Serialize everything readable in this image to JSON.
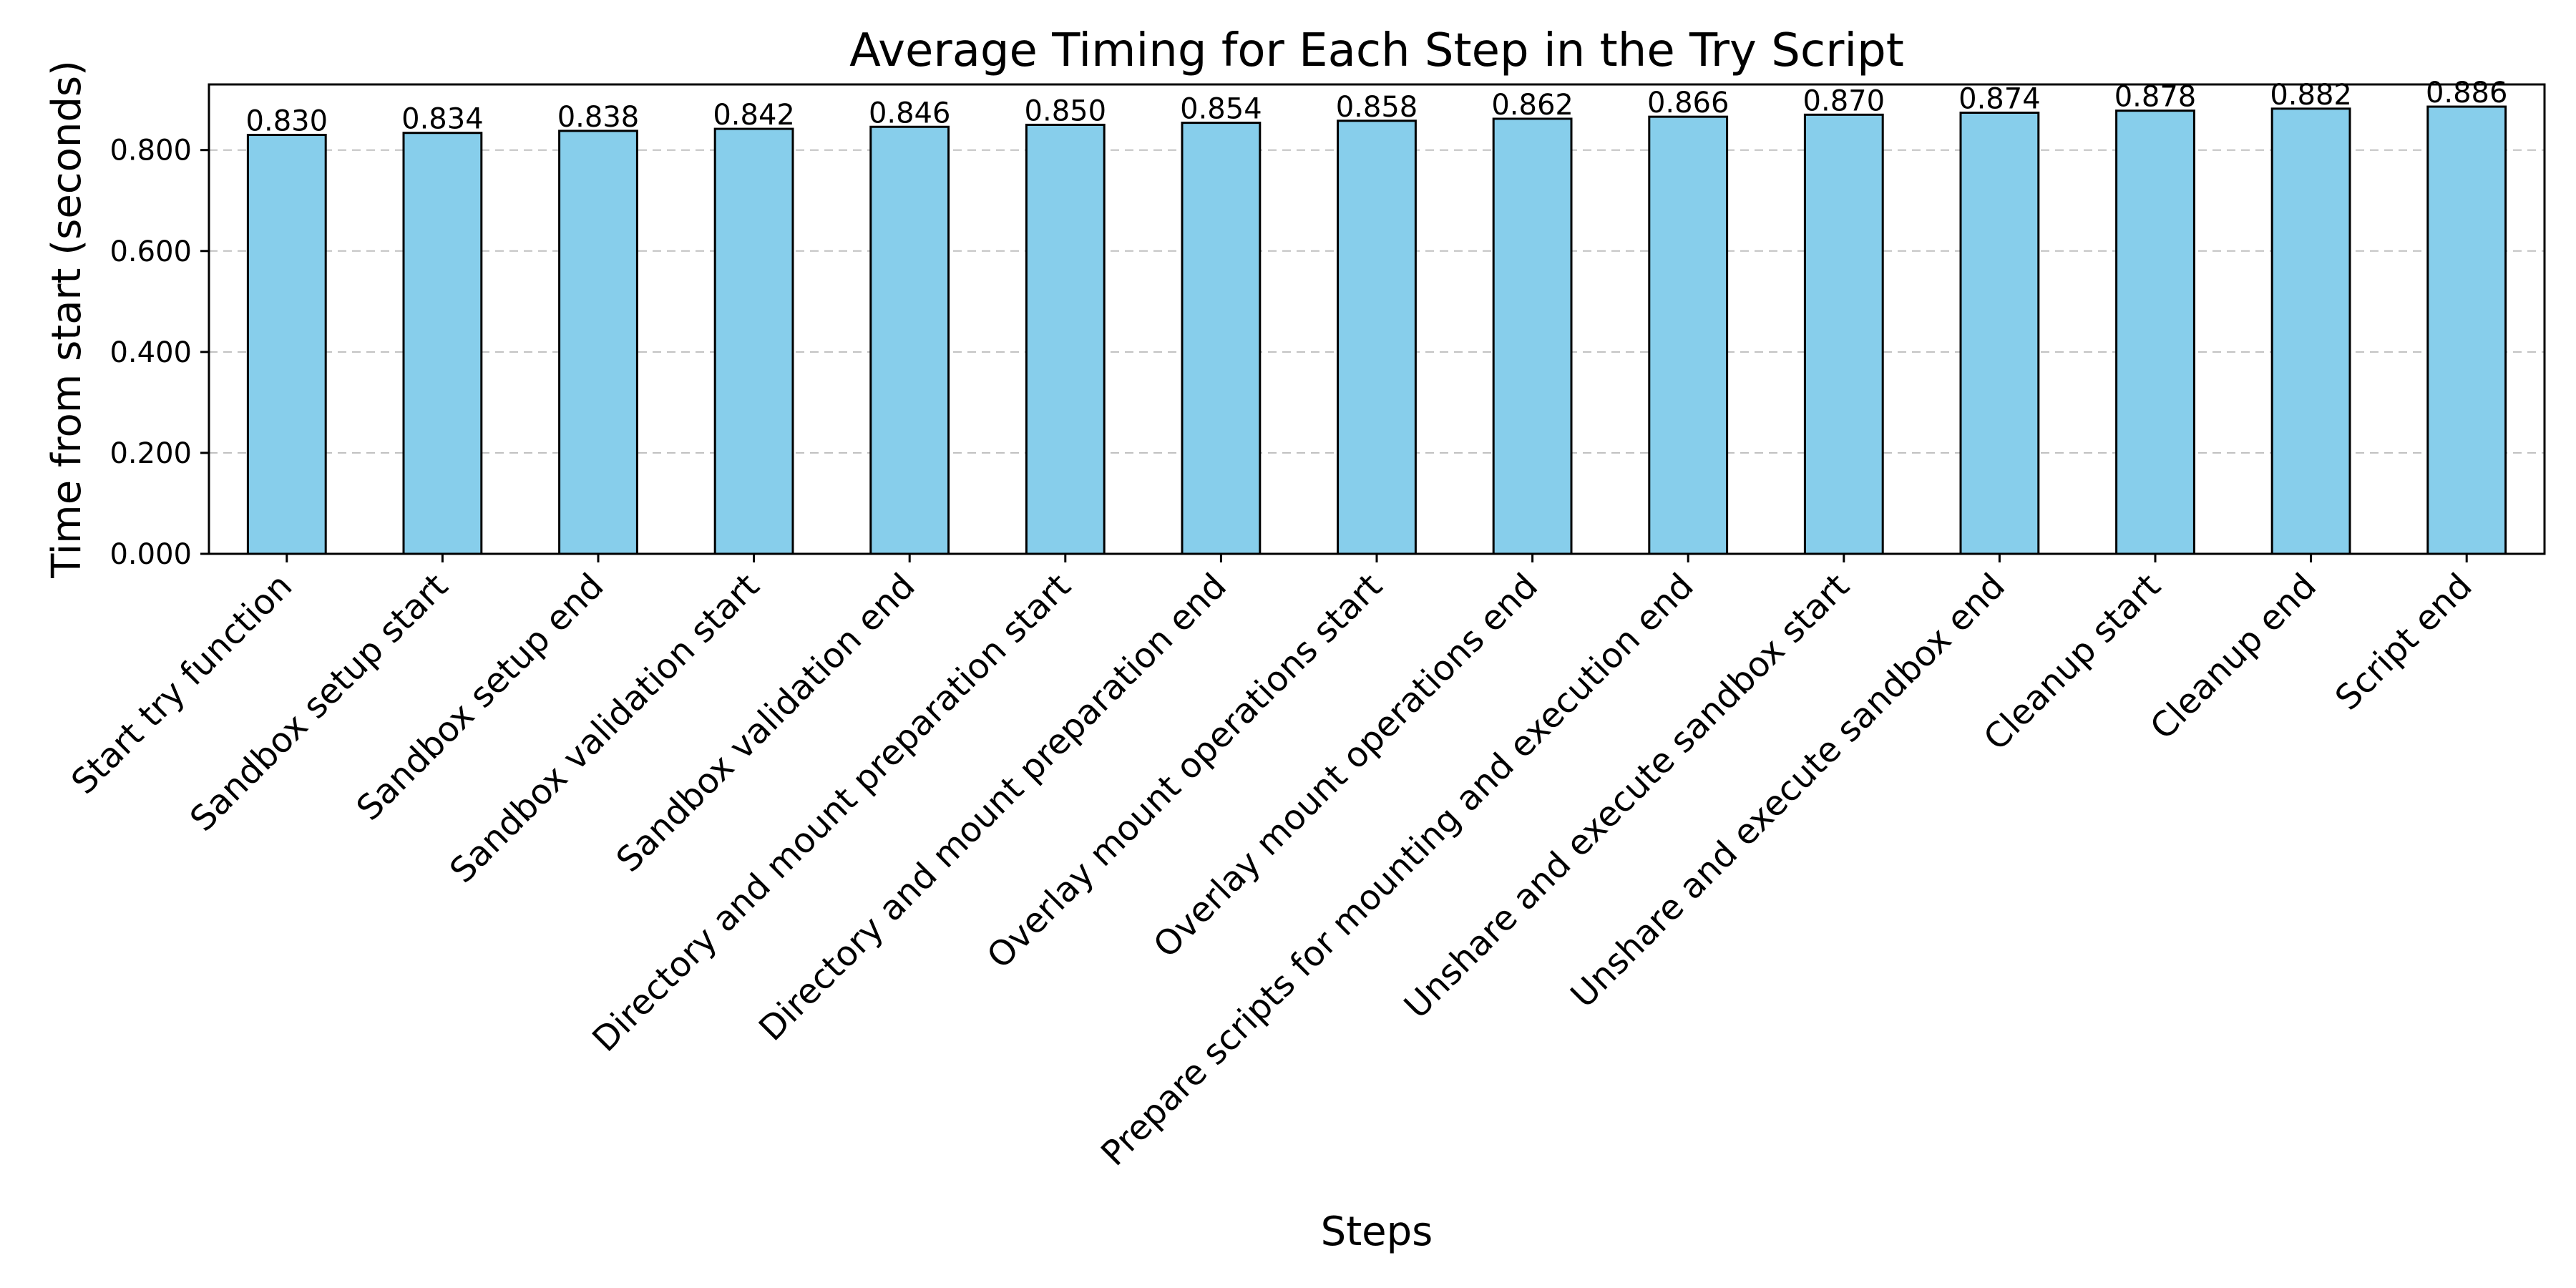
{
  "chart_data": {
    "type": "bar",
    "title": "Average Timing for Each Step in the Try Script",
    "xlabel": "Steps",
    "ylabel": "Time from start (seconds)",
    "ylim": [
      0,
      0.93
    ],
    "yticks": [
      "0.000",
      "0.200",
      "0.400",
      "0.600",
      "0.800"
    ],
    "grid": "y-dashed",
    "bar_color": "#87CEEB",
    "categories": [
      "Start try function",
      "Sandbox setup start",
      "Sandbox setup end",
      "Sandbox validation start",
      "Sandbox validation end",
      "Directory and mount preparation start",
      "Directory and mount preparation end",
      "Overlay mount operations start",
      "Overlay mount operations end",
      "Prepare scripts for mounting and execution end",
      "Unshare and execute sandbox start",
      "Unshare and execute sandbox end",
      "Cleanup start",
      "Cleanup end",
      "Script end"
    ],
    "values": [
      0.83,
      0.834,
      0.838,
      0.842,
      0.846,
      0.85,
      0.854,
      0.858,
      0.862,
      0.866,
      0.87,
      0.874,
      0.878,
      0.882,
      0.886
    ],
    "data_labels": [
      "0.830",
      "0.834",
      "0.838",
      "0.842",
      "0.846",
      "0.850",
      "0.854",
      "0.858",
      "0.862",
      "0.866",
      "0.870",
      "0.874",
      "0.878",
      "0.882",
      "0.886"
    ]
  }
}
